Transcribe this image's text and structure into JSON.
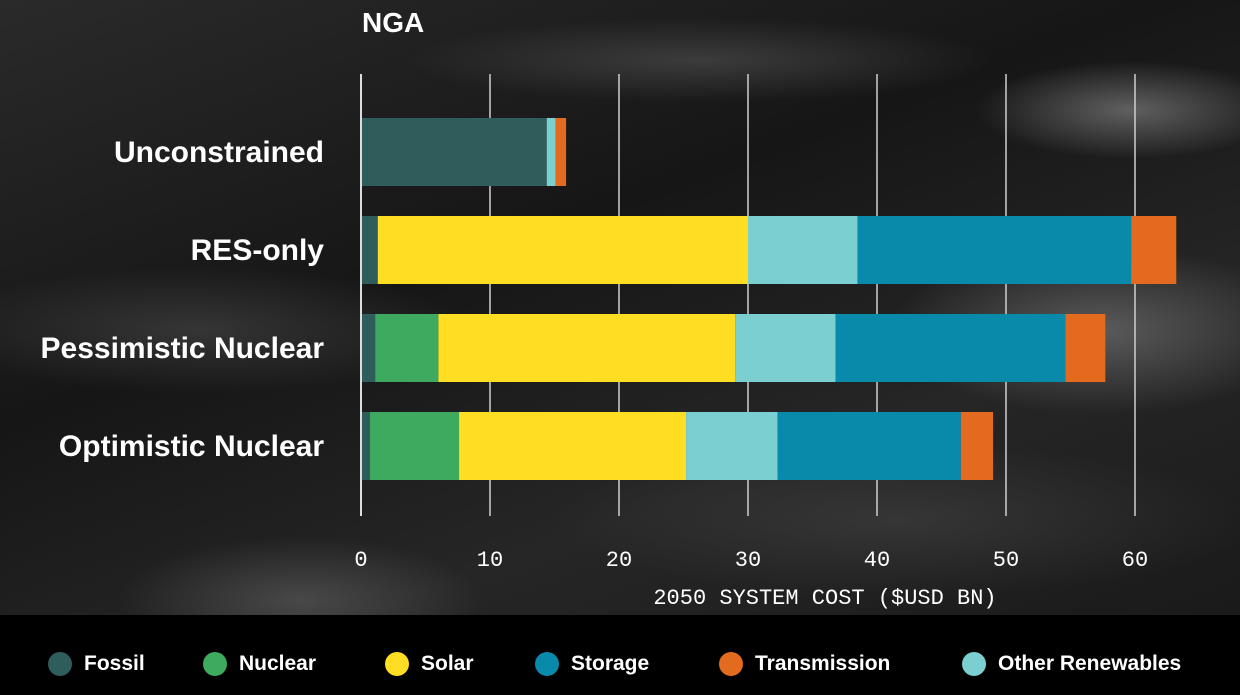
{
  "chart_data": {
    "type": "bar",
    "orientation": "horizontal",
    "stacked": true,
    "title": "NGA",
    "xlabel": "2050 SYSTEM COST ($USD BN)",
    "ylabel": "",
    "xlim": [
      0,
      65
    ],
    "xticks": [
      0,
      10,
      20,
      30,
      40,
      50,
      60
    ],
    "xtick_labels": [
      "0",
      "10",
      "20",
      "30",
      "40",
      "50",
      "60"
    ],
    "grid": true,
    "legend_position": "bottom",
    "categories": [
      "Unconstrained",
      "RES-only",
      "Pessimistic Nuclear",
      "Optimistic Nuclear"
    ],
    "series": [
      {
        "name": "Fossil",
        "color": "#2f5d5b",
        "values": [
          14.4,
          1.3,
          1.1,
          0.7
        ]
      },
      {
        "name": "Nuclear",
        "color": "#3daa5f",
        "values": [
          0,
          0,
          4.9,
          6.9
        ]
      },
      {
        "name": "Solar",
        "color": "#ffdd22",
        "values": [
          0,
          28.7,
          23.0,
          17.6
        ]
      },
      {
        "name": "Other Renewables",
        "color": "#7ccfd0",
        "values": [
          0.7,
          8.5,
          7.8,
          7.1
        ]
      },
      {
        "name": "Storage",
        "color": "#0a8aaa",
        "values": [
          0,
          21.2,
          17.8,
          14.2
        ]
      },
      {
        "name": "Transmission",
        "color": "#e46a20",
        "values": [
          0.8,
          3.5,
          3.1,
          2.5
        ]
      }
    ]
  },
  "legend": {
    "items": [
      {
        "label": "Fossil",
        "color": "#2f5d5b"
      },
      {
        "label": "Nuclear",
        "color": "#3daa5f"
      },
      {
        "label": "Solar",
        "color": "#ffdd22"
      },
      {
        "label": "Storage",
        "color": "#0a8aaa"
      },
      {
        "label": "Transmission",
        "color": "#e46a20"
      },
      {
        "label": "Other Renewables",
        "color": "#7ccfd0"
      }
    ]
  }
}
